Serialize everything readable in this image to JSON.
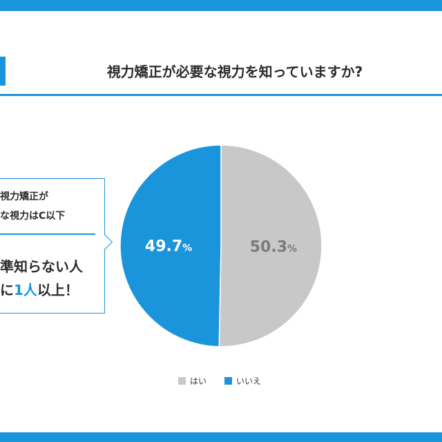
{
  "title": "視力矯正が必要な視力を知っていますか?",
  "callout": {
    "line1": "視力矯正が",
    "line2": "な視力はC以下",
    "big1": "準知らない人",
    "big2_prefix": "に",
    "big2_highlight": "1人",
    "big2_suffix": "以上！"
  },
  "colors": {
    "accent": "#1a94db",
    "gray": "#c8c8c8"
  },
  "chart_data": {
    "type": "pie",
    "slices": [
      {
        "label": "はい",
        "value": 50.3,
        "color": "#c8c8c8",
        "label_text": "50.3",
        "unit": "%"
      },
      {
        "label": "いいえ",
        "value": 49.7,
        "color": "#1a94db",
        "label_text": "49.7",
        "unit": "%"
      }
    ],
    "legend": [
      "はい",
      "いいえ"
    ],
    "legend_position": "bottom"
  }
}
